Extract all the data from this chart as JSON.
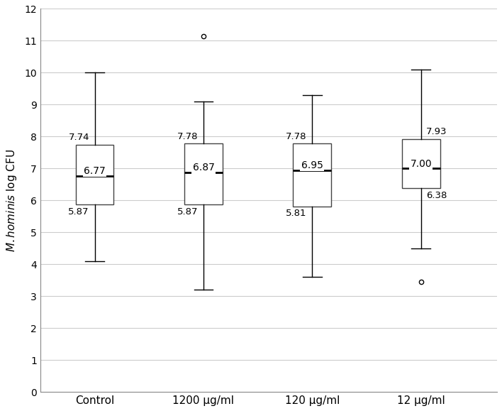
{
  "categories": [
    "Control",
    "1200 µg/ml",
    "120 µg/ml",
    "12 µg/ml"
  ],
  "boxes": [
    {
      "q1": 5.87,
      "median": 6.77,
      "q3": 7.74,
      "whislo": 4.1,
      "whishi": 10.0,
      "fliers": []
    },
    {
      "q1": 5.87,
      "median": 6.87,
      "q3": 7.78,
      "whislo": 3.2,
      "whishi": 9.1,
      "fliers": [
        11.15
      ]
    },
    {
      "q1": 5.81,
      "median": 6.95,
      "q3": 7.78,
      "whislo": 3.6,
      "whishi": 9.3,
      "fliers": []
    },
    {
      "q1": 6.38,
      "median": 7.0,
      "q3": 7.93,
      "whislo": 4.5,
      "whishi": 10.1,
      "fliers": [
        3.45
      ]
    }
  ],
  "median_labels": [
    "6.77",
    "6.87",
    "6.95",
    "7.00"
  ],
  "q1_labels": [
    "5.87",
    "5.87",
    "5.81",
    "6.38"
  ],
  "q3_labels": [
    "7.74",
    "7.78",
    "7.78",
    "7.93"
  ],
  "ylabel": "M. hominis log CFU",
  "ylim": [
    0,
    12
  ],
  "yticks": [
    0,
    1,
    2,
    3,
    4,
    5,
    6,
    7,
    8,
    9,
    10,
    11,
    12
  ],
  "box_color": "#ffffff",
  "median_line_color": "#000000",
  "whisker_color": "#000000",
  "box_edge_color": "#444444",
  "flier_marker": "o",
  "flier_color": "#000000",
  "grid_color": "#cccccc",
  "background_color": "#ffffff",
  "box_width": 0.35,
  "label_fontsize": 11,
  "tick_fontsize": 10,
  "median_label_fontsize": 10,
  "q_label_fontsize": 9.5
}
